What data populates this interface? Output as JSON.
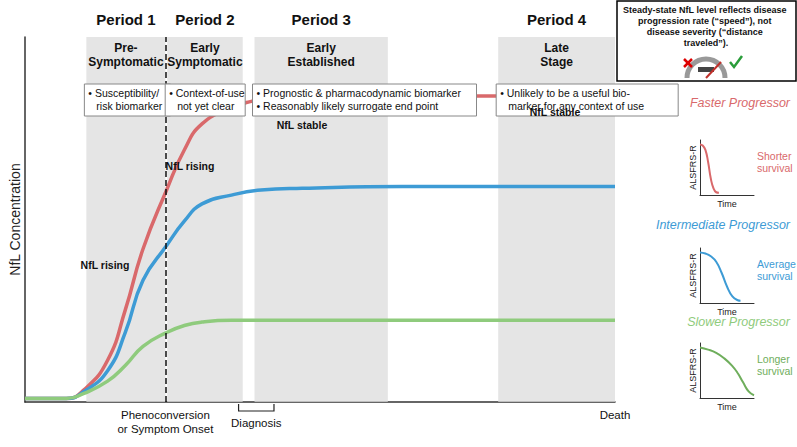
{
  "chart_data": [
    {
      "type": "line",
      "ylabel": "NfL Concentration",
      "tick_labels": false,
      "xlim": [
        0,
        100
      ],
      "ylim": [
        0,
        105
      ],
      "x": [
        0,
        7,
        10,
        14,
        17,
        20,
        24,
        27,
        30,
        35,
        40,
        47,
        64,
        81,
        100
      ],
      "series": [
        {
          "name": "Faster Progressor",
          "color": "#d9696b",
          "values": [
            1,
            1,
            3.5,
            12,
            26.5,
            44,
            61,
            72.5,
            80,
            84.5,
            87,
            88,
            88,
            88,
            86
          ]
        },
        {
          "name": "Intermediate Progressor",
          "color": "#3d9bd5",
          "values": [
            1,
            1,
            3,
            9,
            20,
            35,
            45,
            52,
            57,
            59.5,
            61,
            61.5,
            62,
            62,
            62
          ]
        },
        {
          "name": "Slower Progressor",
          "color": "#8fcb7d",
          "values": [
            1,
            1,
            2.5,
            6,
            10.5,
            16,
            20,
            22,
            23,
            23.5,
            23.5,
            23.5,
            23.5,
            23.5,
            23.5
          ]
        }
      ],
      "periods": [
        {
          "label": "Period 1",
          "stage": "Pre-\nSymptomatic",
          "note": "• Susceptibility/\nrisk biomarker",
          "x": [
            10.4,
            23.8
          ]
        },
        {
          "label": "Period 2",
          "stage": "Early\nSymptomatic",
          "note": "• Context-of-use\nnot yet clear",
          "x": [
            24.1,
            36.9
          ]
        },
        {
          "label": "Period 3",
          "stage": "Early\nEstablished",
          "note": "• Prognostic & pharmacodynamic biomarker\n• Reasonably likely surrogate end point",
          "x": [
            38.9,
            61.5
          ]
        },
        {
          "label": "Period 4",
          "stage": "Late\nStage",
          "note": "• Unlikely to be a useful bio-\nmarker for any context of use",
          "x": [
            80.2,
            100
          ]
        }
      ],
      "annotations": [
        "NfL rising",
        "NfL rising",
        "NfL stable",
        "NfL stable"
      ],
      "markers": [
        {
          "label": "Phenoconversion\nor Symptom Onset",
          "x": 23.8,
          "line_style": "dashed"
        },
        {
          "label": "Diagnosis",
          "x": [
            36.2,
            42.2
          ]
        },
        {
          "label": "Death",
          "x": 100
        }
      ],
      "note": "Steady-state NfL level reflects disease progression rate (“speed”), not disease severity (“distance traveled”)."
    },
    {
      "type": "line",
      "xlabel": "Time",
      "ylabel": "ALSFRS-R",
      "note": "Shorter\nsurvival",
      "color": "#d9696b",
      "tick_labels": false,
      "xlim": [
        0,
        100
      ],
      "ylim": [
        0,
        100
      ],
      "x": [
        0,
        5,
        10,
        15,
        20,
        25,
        30,
        35
      ],
      "values": [
        92,
        90,
        82,
        60,
        30,
        12,
        5,
        4
      ]
    },
    {
      "type": "line",
      "xlabel": "Time",
      "ylabel": "ALSFRS-R",
      "note": "Average\nsurvival",
      "color": "#3d9bd5",
      "tick_labels": false,
      "xlim": [
        0,
        100
      ],
      "ylim": [
        0,
        100
      ],
      "x": [
        0,
        10,
        20,
        30,
        40,
        50,
        60,
        70,
        75
      ],
      "values": [
        92,
        90,
        85,
        75,
        55,
        30,
        12,
        5,
        4
      ]
    },
    {
      "type": "line",
      "xlabel": "Time",
      "ylabel": "ALSFRS-R",
      "note": "Longer\nsurvival",
      "color": "#6fae5c",
      "tick_labels": false,
      "xlim": [
        0,
        100
      ],
      "ylim": [
        0,
        100
      ],
      "x": [
        0,
        15,
        30,
        45,
        60,
        70,
        80,
        90,
        100
      ],
      "values": [
        92,
        88,
        82,
        72,
        58,
        45,
        28,
        12,
        5
      ]
    }
  ]
}
